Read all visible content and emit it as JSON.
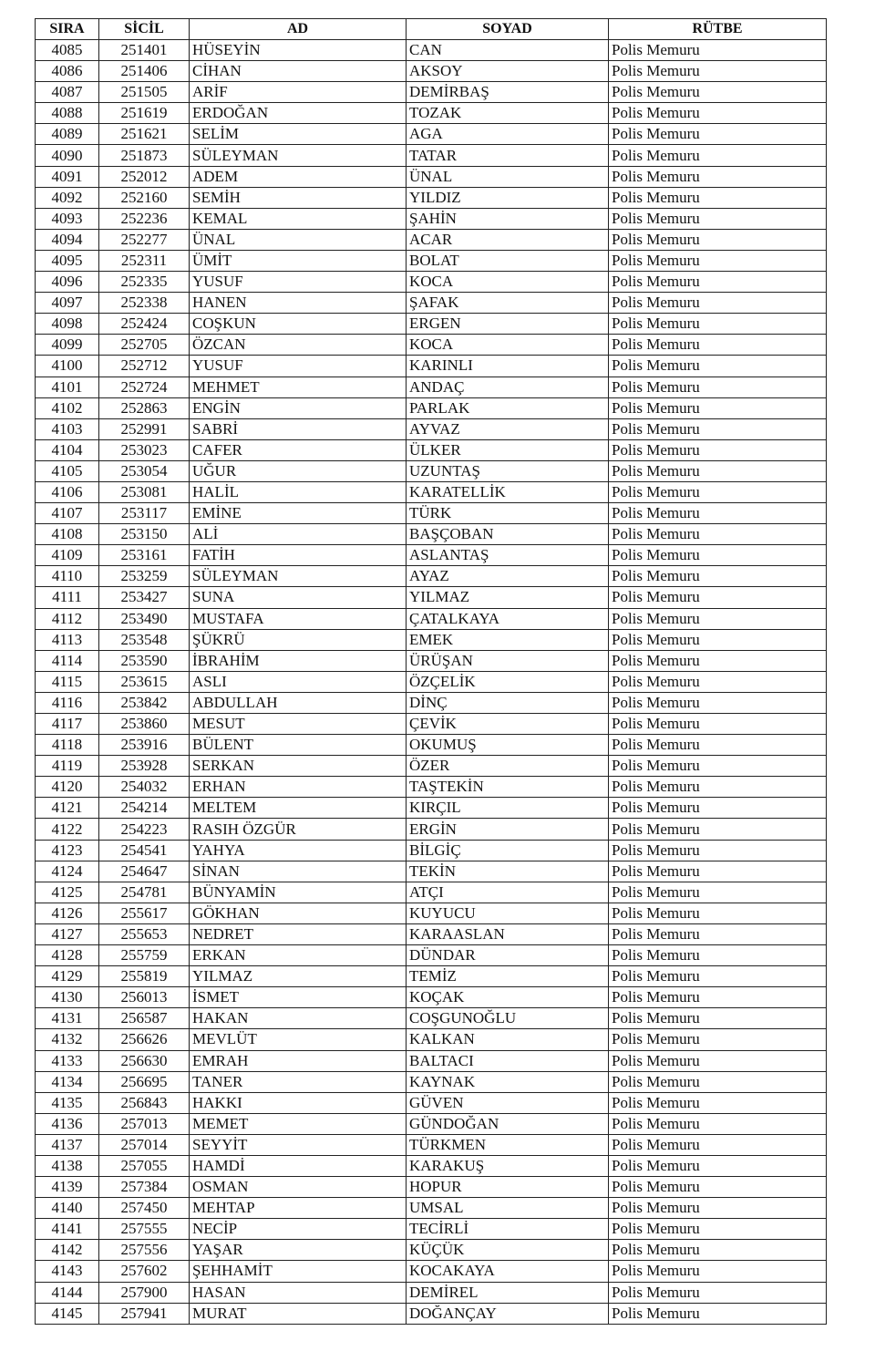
{
  "table": {
    "headers": [
      "SIRA",
      "SİCİL",
      "AD",
      "SOYAD",
      "RÜTBE"
    ],
    "rows": [
      [
        "4085",
        "251401",
        "HÜSEYİN",
        "CAN",
        "Polis Memuru"
      ],
      [
        "4086",
        "251406",
        "CİHAN",
        "AKSOY",
        "Polis Memuru"
      ],
      [
        "4087",
        "251505",
        "ARİF",
        "DEMİRBAŞ",
        "Polis Memuru"
      ],
      [
        "4088",
        "251619",
        "ERDOĞAN",
        "TOZAK",
        "Polis Memuru"
      ],
      [
        "4089",
        "251621",
        "SELİM",
        "AGA",
        "Polis Memuru"
      ],
      [
        "4090",
        "251873",
        "SÜLEYMAN",
        "TATAR",
        "Polis Memuru"
      ],
      [
        "4091",
        "252012",
        "ADEM",
        "ÜNAL",
        "Polis Memuru"
      ],
      [
        "4092",
        "252160",
        "SEMİH",
        "YILDIZ",
        "Polis Memuru"
      ],
      [
        "4093",
        "252236",
        "KEMAL",
        "ŞAHİN",
        "Polis Memuru"
      ],
      [
        "4094",
        "252277",
        "ÜNAL",
        "ACAR",
        "Polis Memuru"
      ],
      [
        "4095",
        "252311",
        "ÜMİT",
        "BOLAT",
        "Polis Memuru"
      ],
      [
        "4096",
        "252335",
        "YUSUF",
        "KOCA",
        "Polis Memuru"
      ],
      [
        "4097",
        "252338",
        "HANEN",
        "ŞAFAK",
        "Polis Memuru"
      ],
      [
        "4098",
        "252424",
        "COŞKUN",
        "ERGEN",
        "Polis Memuru"
      ],
      [
        "4099",
        "252705",
        "ÖZCAN",
        "KOCA",
        "Polis Memuru"
      ],
      [
        "4100",
        "252712",
        "YUSUF",
        "KARINLI",
        "Polis Memuru"
      ],
      [
        "4101",
        "252724",
        "MEHMET",
        "ANDAÇ",
        "Polis Memuru"
      ],
      [
        "4102",
        "252863",
        "ENGİN",
        "PARLAK",
        "Polis Memuru"
      ],
      [
        "4103",
        "252991",
        "SABRİ",
        "AYVAZ",
        "Polis Memuru"
      ],
      [
        "4104",
        "253023",
        "CAFER",
        "ÜLKER",
        "Polis Memuru"
      ],
      [
        "4105",
        "253054",
        "UĞUR",
        "UZUNTAŞ",
        "Polis Memuru"
      ],
      [
        "4106",
        "253081",
        "HALİL",
        "KARATELLİK",
        "Polis Memuru"
      ],
      [
        "4107",
        "253117",
        "EMİNE",
        "TÜRK",
        "Polis Memuru"
      ],
      [
        "4108",
        "253150",
        "ALİ",
        "BAŞÇOBAN",
        "Polis Memuru"
      ],
      [
        "4109",
        "253161",
        "FATİH",
        "ASLANTAŞ",
        "Polis Memuru"
      ],
      [
        "4110",
        "253259",
        "SÜLEYMAN",
        "AYAZ",
        "Polis Memuru"
      ],
      [
        "4111",
        "253427",
        "SUNA",
        "YILMAZ",
        "Polis Memuru"
      ],
      [
        "4112",
        "253490",
        "MUSTAFA",
        "ÇATALKAYA",
        "Polis Memuru"
      ],
      [
        "4113",
        "253548",
        "ŞÜKRÜ",
        "EMEK",
        "Polis Memuru"
      ],
      [
        "4114",
        "253590",
        "İBRAHİM",
        "ÜRÜŞAN",
        "Polis Memuru"
      ],
      [
        "4115",
        "253615",
        "ASLI",
        "ÖZÇELİK",
        "Polis Memuru"
      ],
      [
        "4116",
        "253842",
        "ABDULLAH",
        "DİNÇ",
        "Polis Memuru"
      ],
      [
        "4117",
        "253860",
        "MESUT",
        "ÇEVİK",
        "Polis Memuru"
      ],
      [
        "4118",
        "253916",
        "BÜLENT",
        "OKUMUŞ",
        "Polis Memuru"
      ],
      [
        "4119",
        "253928",
        "SERKAN",
        "ÖZER",
        "Polis Memuru"
      ],
      [
        "4120",
        "254032",
        "ERHAN",
        "TAŞTEKİN",
        "Polis Memuru"
      ],
      [
        "4121",
        "254214",
        "MELTEM",
        "KIRÇIL",
        "Polis Memuru"
      ],
      [
        "4122",
        "254223",
        "RASIH ÖZGÜR",
        "ERGİN",
        "Polis Memuru"
      ],
      [
        "4123",
        "254541",
        "YAHYA",
        "BİLGİÇ",
        "Polis Memuru"
      ],
      [
        "4124",
        "254647",
        "SİNAN",
        "TEKİN",
        "Polis Memuru"
      ],
      [
        "4125",
        "254781",
        "BÜNYAMİN",
        "ATÇI",
        "Polis Memuru"
      ],
      [
        "4126",
        "255617",
        "GÖKHAN",
        "KUYUCU",
        "Polis Memuru"
      ],
      [
        "4127",
        "255653",
        "NEDRET",
        "KARAASLAN",
        "Polis Memuru"
      ],
      [
        "4128",
        "255759",
        "ERKAN",
        "DÜNDAR",
        "Polis Memuru"
      ],
      [
        "4129",
        "255819",
        "YILMAZ",
        "TEMİZ",
        "Polis Memuru"
      ],
      [
        "4130",
        "256013",
        "İSMET",
        "KOÇAK",
        "Polis Memuru"
      ],
      [
        "4131",
        "256587",
        "HAKAN",
        "COŞGUNOĞLU",
        "Polis Memuru"
      ],
      [
        "4132",
        "256626",
        "MEVLÜT",
        "KALKAN",
        "Polis Memuru"
      ],
      [
        "4133",
        "256630",
        "EMRAH",
        "BALTACI",
        "Polis Memuru"
      ],
      [
        "4134",
        "256695",
        "TANER",
        "KAYNAK",
        "Polis Memuru"
      ],
      [
        "4135",
        "256843",
        "HAKKI",
        "GÜVEN",
        "Polis Memuru"
      ],
      [
        "4136",
        "257013",
        "MEMET",
        "GÜNDOĞAN",
        "Polis Memuru"
      ],
      [
        "4137",
        "257014",
        "SEYYİT",
        "TÜRKMEN",
        "Polis Memuru"
      ],
      [
        "4138",
        "257055",
        "HAMDİ",
        "KARAKUŞ",
        "Polis Memuru"
      ],
      [
        "4139",
        "257384",
        "OSMAN",
        "HOPUR",
        "Polis Memuru"
      ],
      [
        "4140",
        "257450",
        "MEHTAP",
        "UMSAL",
        "Polis Memuru"
      ],
      [
        "4141",
        "257555",
        "NECİP",
        "TECİRLİ",
        "Polis Memuru"
      ],
      [
        "4142",
        "257556",
        "YAŞAR",
        "KÜÇÜK",
        "Polis Memuru"
      ],
      [
        "4143",
        "257602",
        "ŞEHHAMİT",
        "KOCAKAYA",
        "Polis Memuru"
      ],
      [
        "4144",
        "257900",
        "HASAN",
        "DEMİREL",
        "Polis Memuru"
      ],
      [
        "4145",
        "257941",
        "MURAT",
        "DOĞANÇAY",
        "Polis Memuru"
      ]
    ]
  }
}
